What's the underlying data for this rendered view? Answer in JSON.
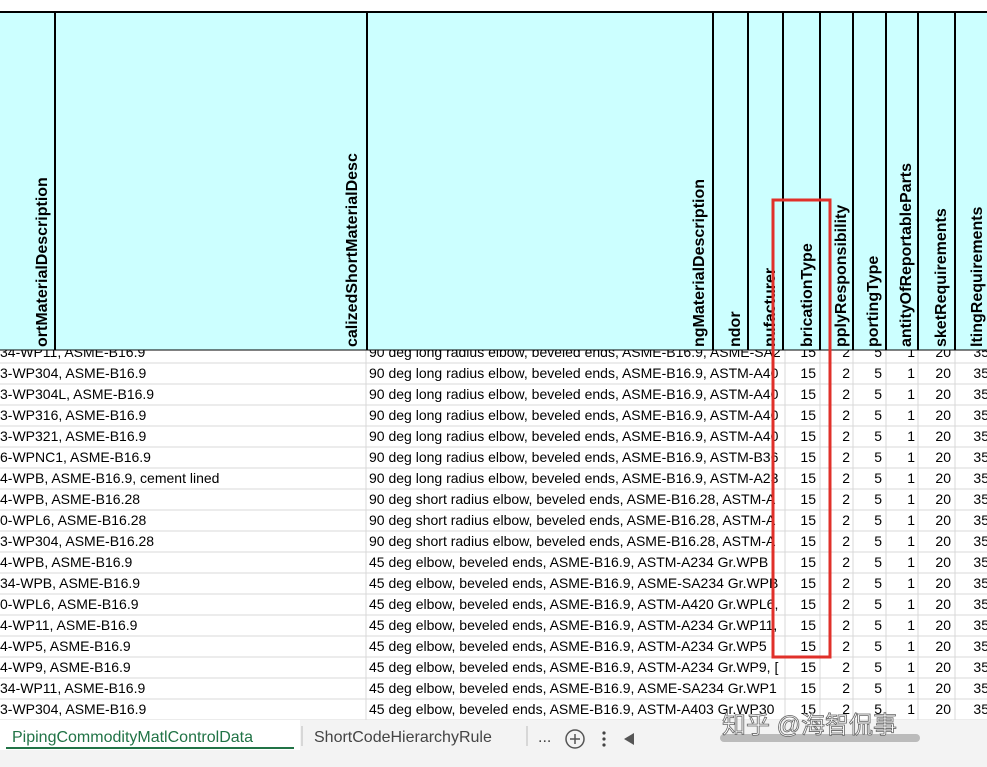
{
  "table": {
    "headers": [
      "ortMaterialDescription",
      "calizedShortMaterialDesc",
      "ngMaterialDescription",
      "ndor",
      "nufacturer",
      "bricationType",
      "pplyResponsibility",
      "portingType",
      "antityOfReportableParts",
      "sketRequirements",
      "ltingRequirements"
    ],
    "rows": [
      [
        "34-WP11, ASME-B16.9",
        "90 deg long radius elbow, beveled ends, ASME-B16.9, ASME-SA2",
        15,
        2,
        5,
        1,
        20,
        35
      ],
      [
        "3-WP304, ASME-B16.9",
        "90 deg long radius elbow, beveled ends, ASME-B16.9, ASTM-A40",
        15,
        2,
        5,
        1,
        20,
        35
      ],
      [
        "3-WP304L, ASME-B16.9",
        "90 deg long radius elbow, beveled ends, ASME-B16.9, ASTM-A40",
        15,
        2,
        5,
        1,
        20,
        35
      ],
      [
        "3-WP316, ASME-B16.9",
        "90 deg long radius elbow, beveled ends, ASME-B16.9, ASTM-A40",
        15,
        2,
        5,
        1,
        20,
        35
      ],
      [
        "3-WP321, ASME-B16.9",
        "90 deg long radius elbow, beveled ends, ASME-B16.9, ASTM-A40",
        15,
        2,
        5,
        1,
        20,
        35
      ],
      [
        "6-WPNC1, ASME-B16.9",
        "90 deg long radius elbow, beveled ends, ASME-B16.9, ASTM-B36",
        15,
        2,
        5,
        1,
        20,
        35
      ],
      [
        "4-WPB, ASME-B16.9, cement lined",
        "90 deg long radius elbow, beveled ends, ASME-B16.9, ASTM-A23",
        15,
        2,
        5,
        1,
        20,
        35
      ],
      [
        "4-WPB, ASME-B16.28",
        "90 deg short radius elbow, beveled ends, ASME-B16.28, ASTM-A",
        15,
        2,
        5,
        1,
        20,
        35
      ],
      [
        "0-WPL6, ASME-B16.28",
        "90 deg short radius elbow, beveled ends, ASME-B16.28, ASTM-A",
        15,
        2,
        5,
        1,
        20,
        35
      ],
      [
        "3-WP304, ASME-B16.28",
        "90 deg short radius elbow, beveled ends, ASME-B16.28, ASTM-A",
        15,
        2,
        5,
        1,
        20,
        35
      ],
      [
        "4-WPB, ASME-B16.9",
        "45 deg elbow, beveled ends, ASME-B16.9, ASTM-A234 Gr.WPB |",
        15,
        2,
        5,
        1,
        20,
        35
      ],
      [
        "34-WPB, ASME-B16.9",
        "45 deg elbow, beveled ends, ASME-B16.9, ASME-SA234 Gr.WPB",
        15,
        2,
        5,
        1,
        20,
        35
      ],
      [
        "0-WPL6, ASME-B16.9",
        "45 deg elbow, beveled ends, ASME-B16.9, ASTM-A420 Gr.WPL6,",
        15,
        2,
        5,
        1,
        20,
        35
      ],
      [
        "4-WP11, ASME-B16.9",
        "45 deg elbow, beveled ends, ASME-B16.9, ASTM-A234 Gr.WP11,",
        15,
        2,
        5,
        1,
        20,
        35
      ],
      [
        "4-WP5, ASME-B16.9",
        "45 deg elbow, beveled ends, ASME-B16.9, ASTM-A234 Gr.WP5 [",
        15,
        2,
        5,
        1,
        20,
        35
      ],
      [
        "4-WP9, ASME-B16.9",
        "45 deg elbow, beveled ends, ASME-B16.9, ASTM-A234 Gr.WP9, [",
        15,
        2,
        5,
        1,
        20,
        35
      ],
      [
        "34-WP11, ASME-B16.9",
        "45 deg elbow, beveled ends, ASME-B16.9, ASME-SA234 Gr.WP1",
        15,
        2,
        5,
        1,
        20,
        35
      ],
      [
        "3-WP304, ASME-B16.9",
        "45 deg elbow, beveled ends, ASME-B16.9, ASTM-A403 Gr.WP30",
        15,
        2,
        5,
        1,
        20,
        35
      ]
    ]
  },
  "tabs": [
    "PipingCommodityMatlControlData",
    "ShortCodeHierarchyRule"
  ],
  "tab_overflow": "...",
  "watermark": "知乎 @海智侃事"
}
